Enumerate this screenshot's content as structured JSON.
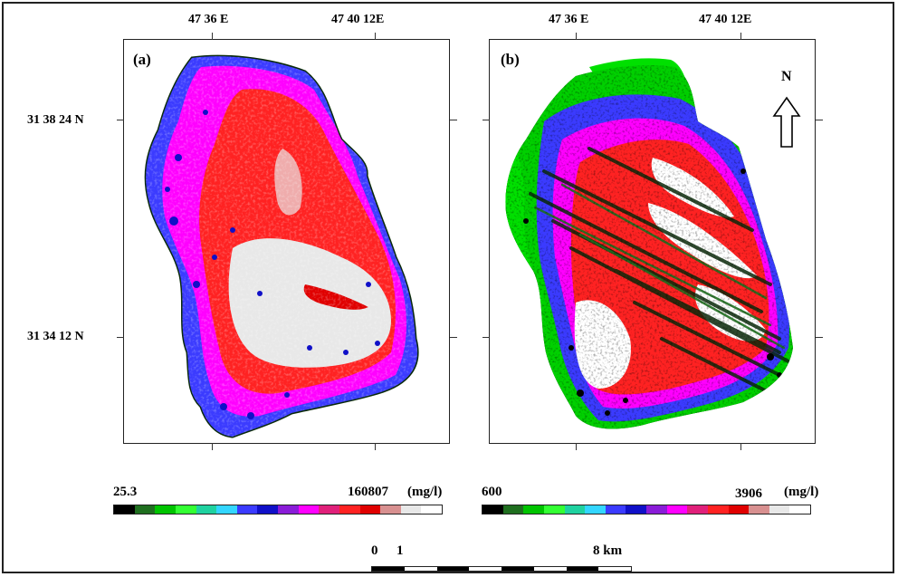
{
  "panel_a": {
    "label": "(a)",
    "legend_min": "25.3",
    "legend_max": "160807",
    "legend_unit": "(mg/l)",
    "colors": [
      "#000000",
      "#1f6f1f",
      "#00c400",
      "#33ff33",
      "#1fd2a0",
      "#33d6ff",
      "#3b3bff",
      "#1010c8",
      "#8a1cd8",
      "#ff00ff",
      "#e0207a",
      "#ff2222",
      "#e00000",
      "#d89090",
      "#e8e8e8",
      "#ffffff"
    ]
  },
  "panel_b": {
    "label": "(b)",
    "legend_min": "600",
    "legend_max": "3906",
    "legend_unit": "(mg/l)",
    "north_label": "N",
    "colors": [
      "#000000",
      "#1f6f1f",
      "#00c400",
      "#33ff33",
      "#1fd2a0",
      "#33d6ff",
      "#3b3bff",
      "#1010c8",
      "#8a1cd8",
      "#ff00ff",
      "#e0207a",
      "#ff2222",
      "#e00000",
      "#d89090",
      "#e8e8e8",
      "#ffffff"
    ]
  },
  "coords": {
    "lon_1": "47 36 E",
    "lon_2": "47 40 12E",
    "lat_1": "31 38 24 N",
    "lat_2": "31 34 12 N"
  },
  "scale": {
    "zero": "0",
    "one": "1",
    "end": "8 km"
  }
}
